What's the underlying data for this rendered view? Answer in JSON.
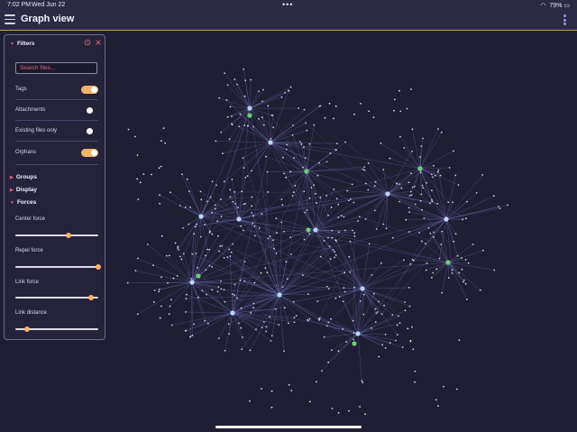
{
  "status_bar": {
    "time": "7:02 PM",
    "date": "Wed Jun 22",
    "battery": "79%"
  },
  "header": {
    "title": "Graph view"
  },
  "panel": {
    "filters": {
      "title": "Filters",
      "search_placeholder": "Search files...",
      "options": [
        {
          "label": "Tags",
          "on": true
        },
        {
          "label": "Attachments",
          "on": false
        },
        {
          "label": "Existing files only",
          "on": false
        },
        {
          "label": "Orphans",
          "on": true
        }
      ]
    },
    "groups": {
      "title": "Groups"
    },
    "display": {
      "title": "Display"
    },
    "forces": {
      "title": "Forces",
      "sliders": [
        {
          "label": "Center force",
          "value": 0.64
        },
        {
          "label": "Repel force",
          "value": 1.0
        },
        {
          "label": "Link force",
          "value": 0.91
        },
        {
          "label": "Link distance",
          "value": 0.14
        }
      ]
    }
  },
  "colors": {
    "accent": "#f3b36b",
    "link": "#7f80d6",
    "node": "#b9d7f0",
    "tag_node": "#6ccf6f",
    "caret": "#e0607a"
  }
}
